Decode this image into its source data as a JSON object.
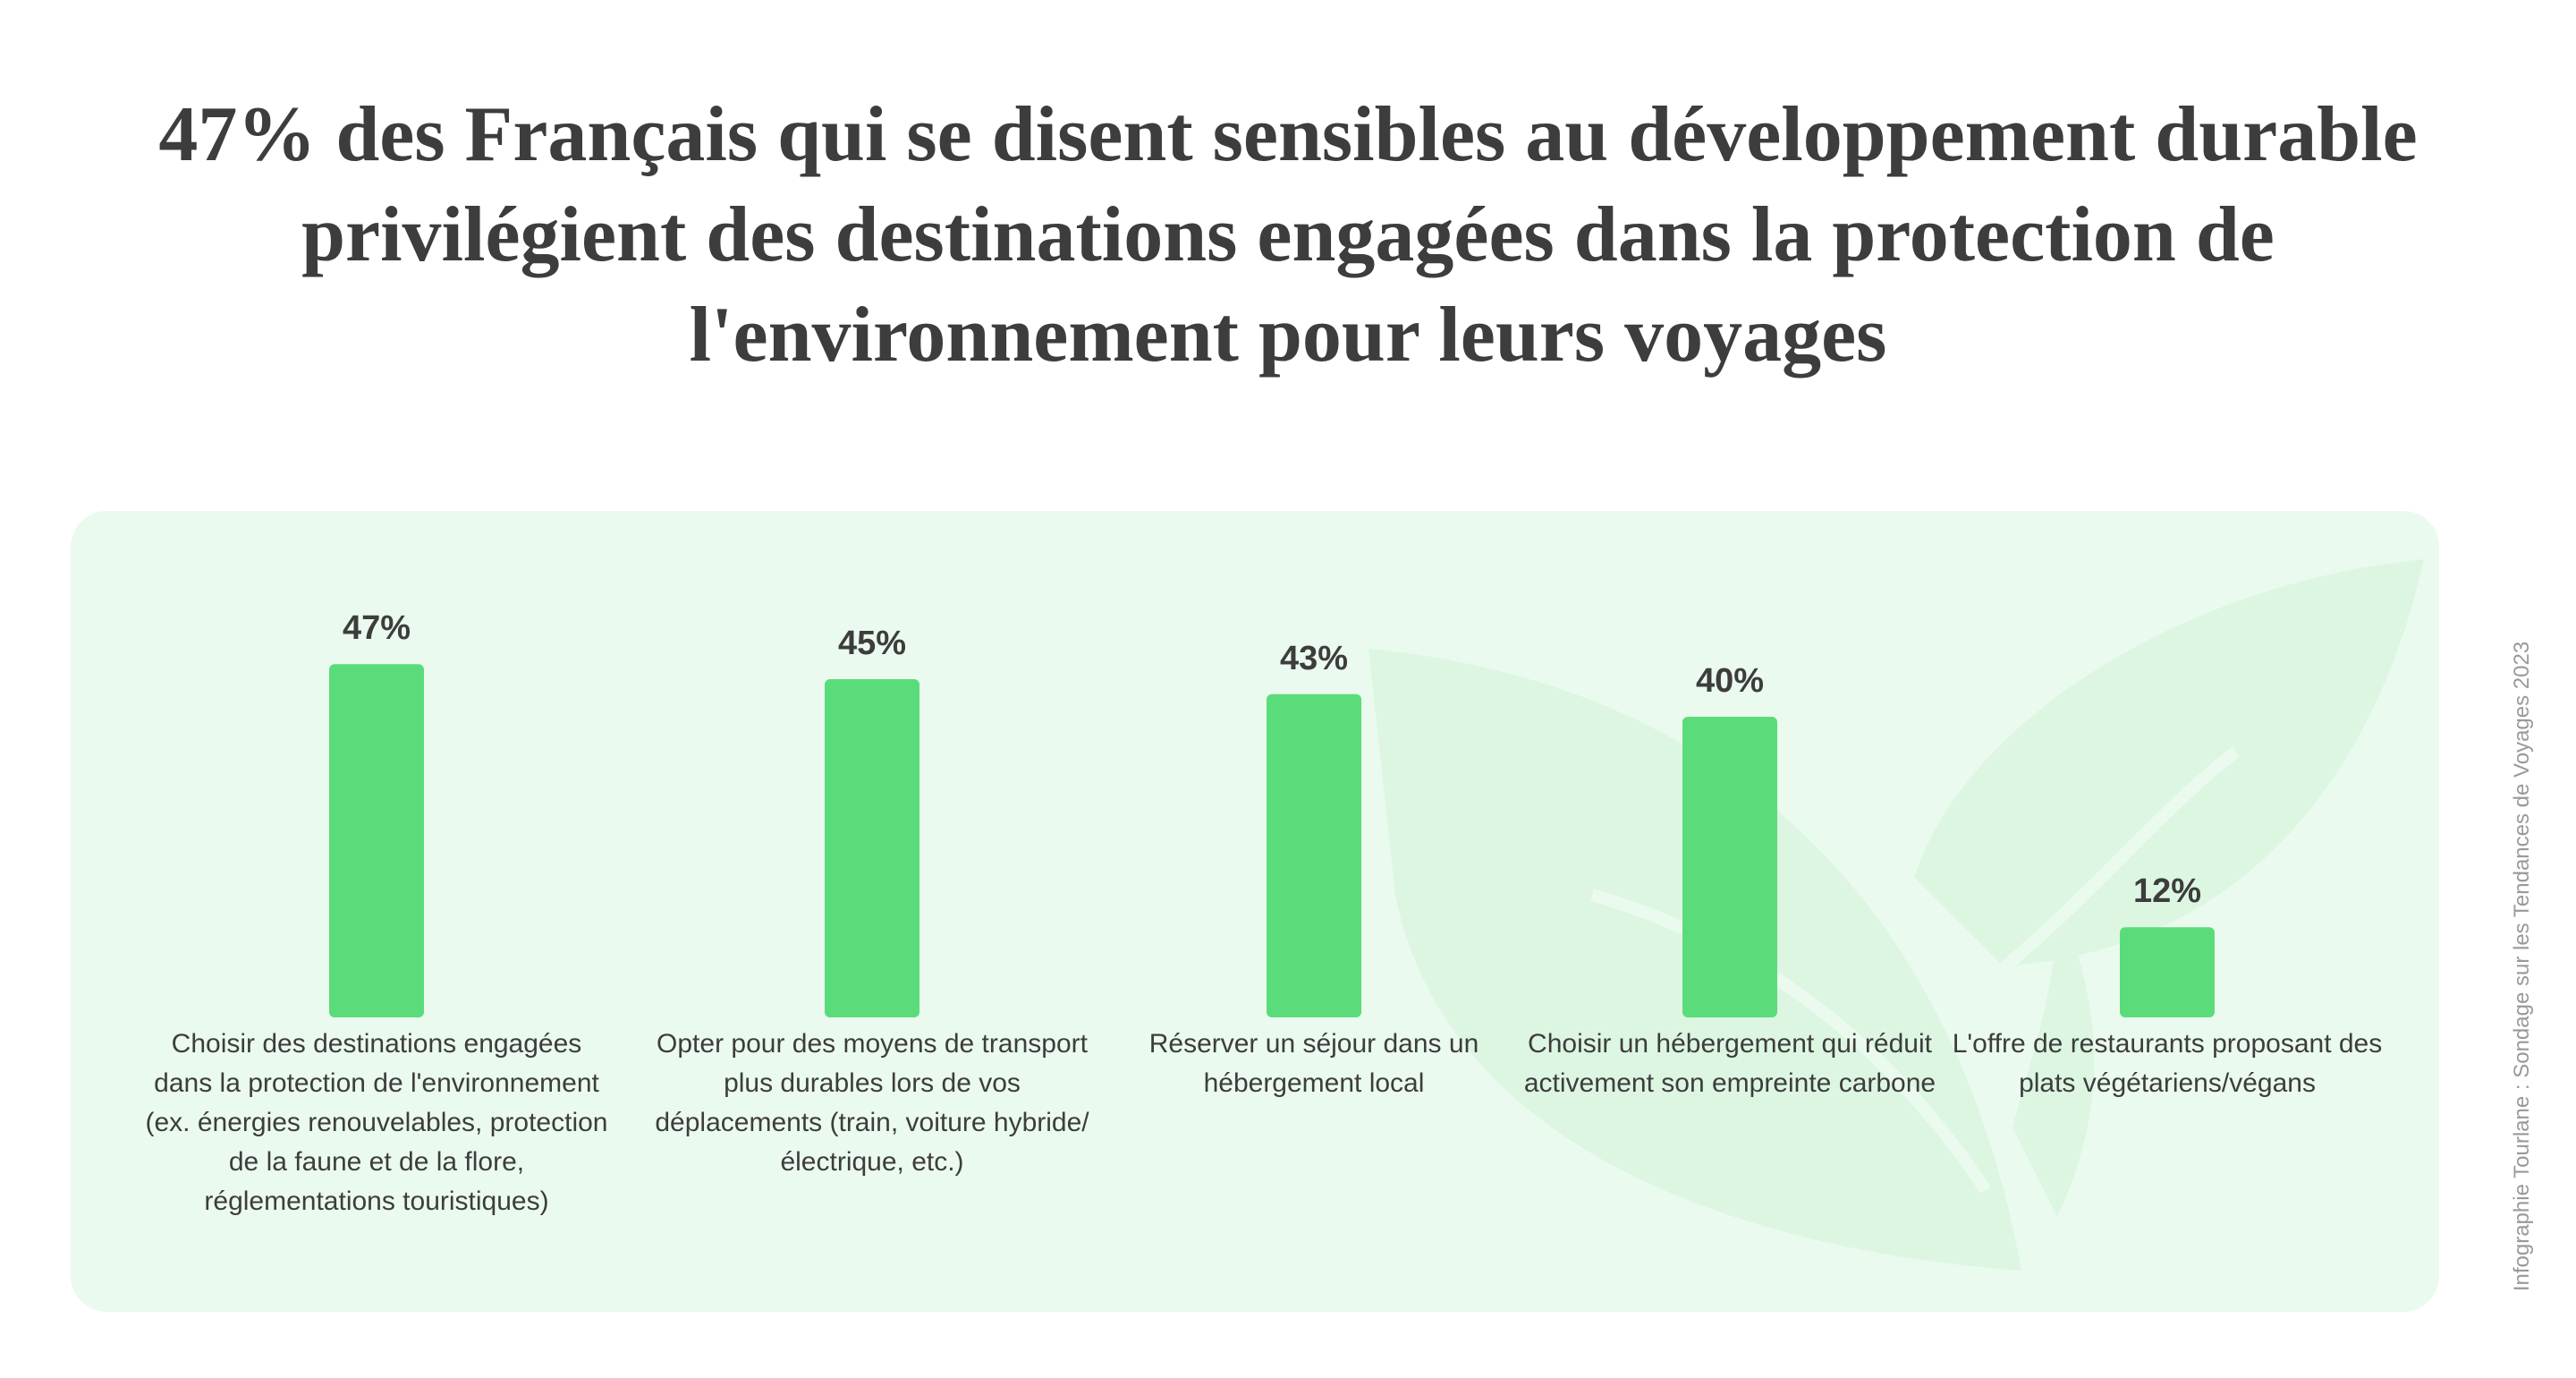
{
  "chart_data": {
    "type": "bar",
    "title": "47% des Français qui se disent sensibles au développement durable privilégient des destinations engagées dans la protection de l'environnement pour leurs voyages",
    "categories": [
      "Choisir des destinations engagées dans la protection de l'environnement (ex. énergies renouvelables, protection de la faune et de la flore, réglementations touristiques)",
      "Opter pour des moyens de transport plus durables lors de vos déplacements (train, voiture hybride/électrique, etc.)",
      "Réserver un séjour dans un hébergement local",
      "Choisir un hébergement qui réduit activement son empreinte carbone",
      "L'offre de restaurants proposant des plats végétariens/végans"
    ],
    "values": [
      47,
      45,
      43,
      40,
      12
    ],
    "value_labels": [
      "47%",
      "45%",
      "43%",
      "40%",
      "12%"
    ],
    "color": "#5bdc7a",
    "source": "Infographie Tourlane : Sondage sur les Tendances de Voyages 2023"
  }
}
